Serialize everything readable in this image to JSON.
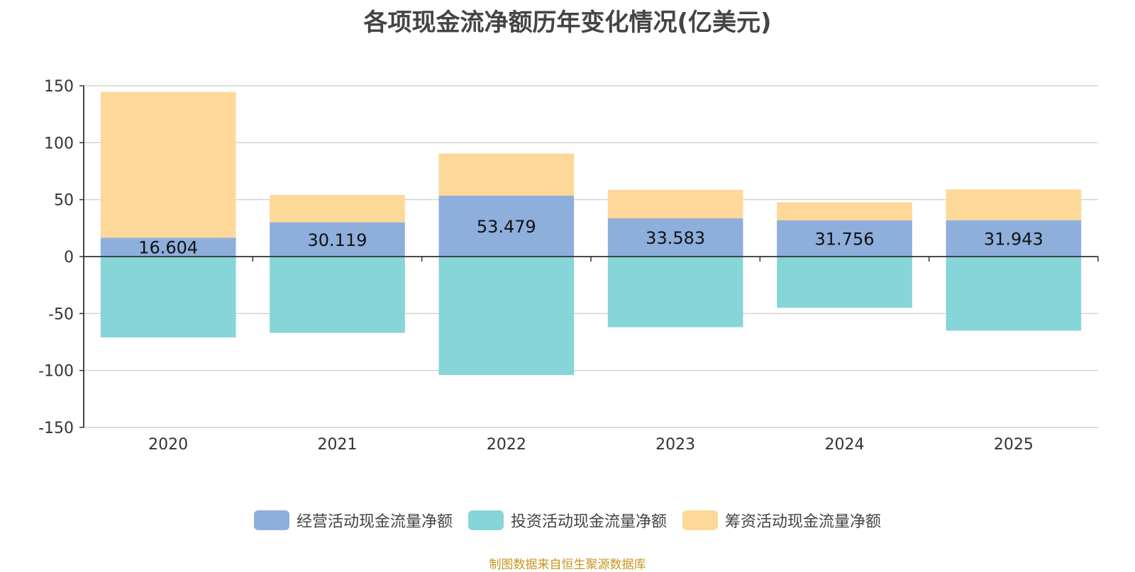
{
  "title": "各项现金流净额历年变化情况(亿美元)",
  "source_note": "制图数据来自恒生聚源数据库",
  "colors": {
    "operating": "#8eaedc",
    "investing": "#86d5d8",
    "financing": "#fed899",
    "axis": "#333333",
    "grid": "#c8c8c8",
    "text": "#333333"
  },
  "chart_data": {
    "type": "bar",
    "stacked": true,
    "title": "各项现金流净额历年变化情况(亿美元)",
    "categories": [
      "2020",
      "2021",
      "2022",
      "2023",
      "2024",
      "2025"
    ],
    "series": [
      {
        "name": "经营活动现金流量净额",
        "values": [
          16.604,
          30.119,
          53.479,
          33.583,
          31.756,
          31.943
        ],
        "labels": [
          "16.604",
          "30.119",
          "53.479",
          "33.583",
          "31.756",
          "31.943"
        ]
      },
      {
        "name": "投资活动现金流量净额",
        "values": [
          -71,
          -67,
          -104,
          -62,
          -45,
          -65
        ]
      },
      {
        "name": "筹资活动现金流量净额",
        "values": [
          128,
          24,
          37,
          25,
          16,
          27
        ]
      }
    ],
    "ylim": [
      -150,
      150
    ],
    "yticks": [
      150,
      100,
      50,
      0,
      -50,
      -100,
      -150
    ],
    "ytick_labels": [
      "150",
      "100",
      "50",
      "0",
      "-50",
      "-100",
      "-150"
    ],
    "grid": true,
    "legend_position": "bottom"
  }
}
